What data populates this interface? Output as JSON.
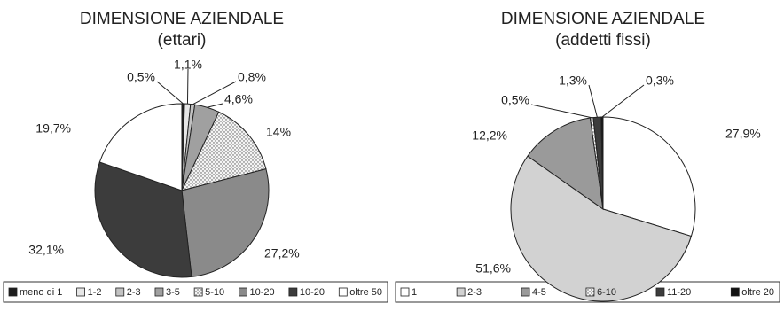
{
  "chart_data": [
    {
      "type": "pie",
      "title": "DIMENSIONE AZIENDALE",
      "subtitle": "(ettari)",
      "categories": [
        "meno di 1",
        "1-2",
        "2-3",
        "3-5",
        "5-10",
        "10-20",
        "10-20",
        "oltre 50"
      ],
      "values": [
        0.5,
        1.1,
        0.8,
        4.6,
        14,
        27.2,
        32.1,
        19.7
      ],
      "value_labels": [
        "0,5%",
        "1,1%",
        "0,8%",
        "4,6%",
        "14%",
        "27,2%",
        "32,1%",
        "19,7%"
      ],
      "colors": [
        "#1e1e1e",
        "#e6e6e6",
        "#c2c2c2",
        "#a0a0a0",
        "url(#dots)",
        "#8a8a8a",
        "#3c3c3c",
        "#ffffff"
      ]
    },
    {
      "type": "pie",
      "title": "DIMENSIONE AZIENDALE",
      "subtitle": "(addetti fissi)",
      "categories": [
        "1",
        "2-3",
        "4-5",
        "6-10",
        "11-20",
        "oltre 20"
      ],
      "values": [
        27.9,
        51.6,
        12.2,
        0.5,
        1.3,
        0.3
      ],
      "value_labels": [
        "27,9%",
        "51,6%",
        "12,2%",
        "0,5%",
        "1,3%",
        "0,3%"
      ],
      "colors": [
        "#ffffff",
        "#d2d2d2",
        "#9a9a9a",
        "url(#dots)",
        "#3c3c3c",
        "#111111"
      ]
    }
  ]
}
